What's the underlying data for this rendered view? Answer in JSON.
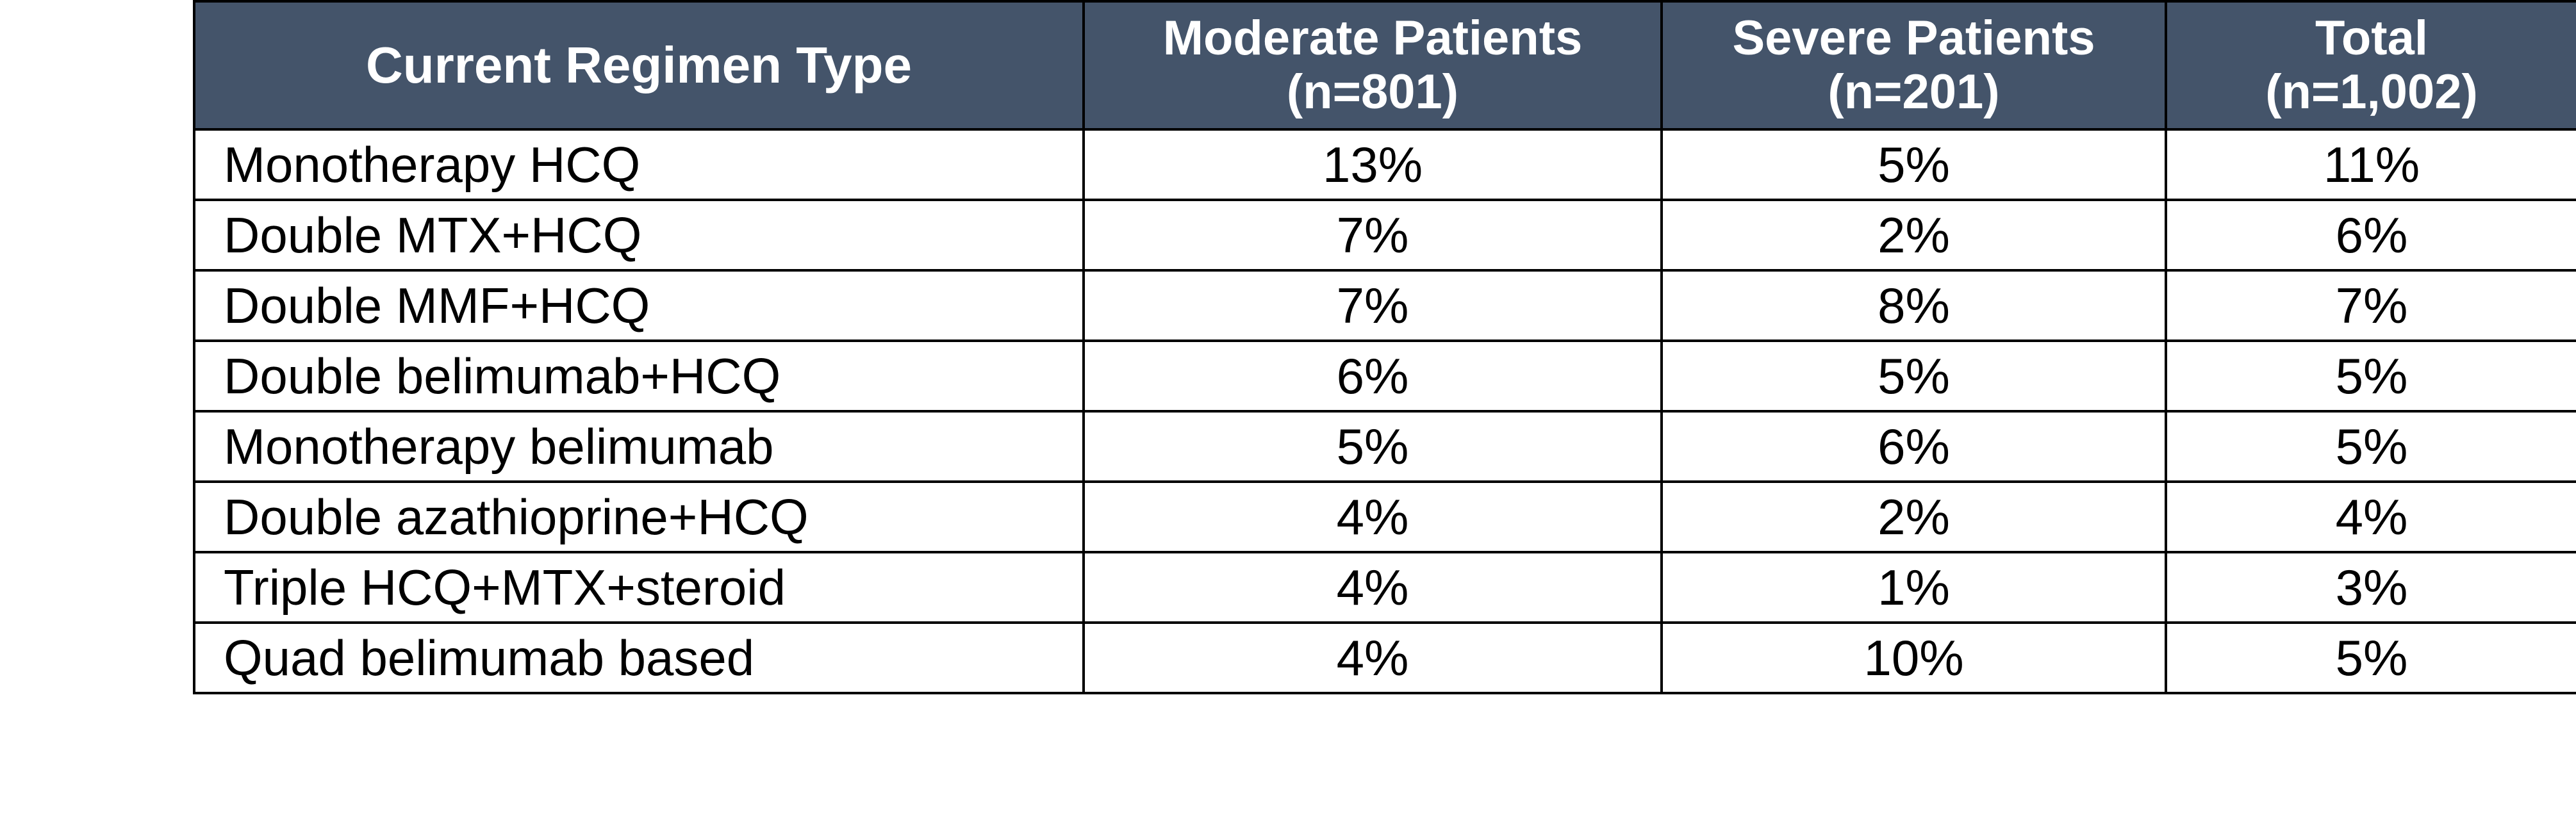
{
  "table": {
    "headers": {
      "regimen": "Current Regimen Type",
      "moderate": {
        "line1": "Moderate Patients",
        "line2": "(n=801)"
      },
      "severe": {
        "line1": "Severe Patients",
        "line2": "(n=201)"
      },
      "total": {
        "line1": "Total",
        "line2": "(n=1,002)"
      }
    },
    "rows": [
      {
        "regimen": "Monotherapy HCQ",
        "moderate": "13%",
        "severe": "5%",
        "total": "11%"
      },
      {
        "regimen": "Double MTX+HCQ",
        "moderate": "7%",
        "severe": "2%",
        "total": "6%"
      },
      {
        "regimen": "Double MMF+HCQ",
        "moderate": "7%",
        "severe": "8%",
        "total": "7%"
      },
      {
        "regimen": "Double belimumab+HCQ",
        "moderate": "6%",
        "severe": "5%",
        "total": "5%"
      },
      {
        "regimen": "Monotherapy belimumab",
        "moderate": "5%",
        "severe": "6%",
        "total": "5%"
      },
      {
        "regimen": "Double azathioprine+HCQ",
        "moderate": "4%",
        "severe": "2%",
        "total": "4%"
      },
      {
        "regimen": "Triple HCQ+MTX+steroid",
        "moderate": "4%",
        "severe": "1%",
        "total": "3%"
      },
      {
        "regimen": "Quad belimumab based",
        "moderate": "4%",
        "severe": "10%",
        "total": "5%"
      }
    ],
    "colors": {
      "header_background": "#44546A",
      "header_text": "#FFFFFF",
      "border": "#000000"
    }
  }
}
